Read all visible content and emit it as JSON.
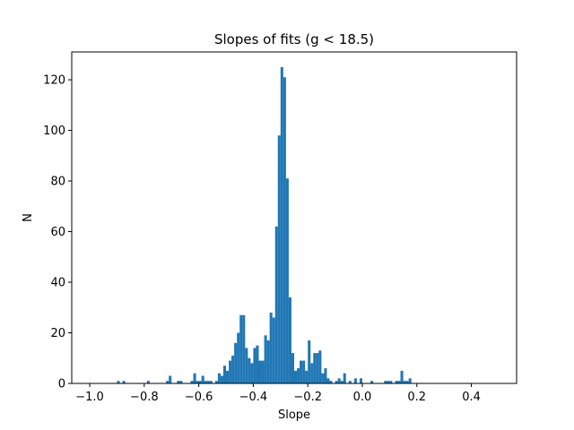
{
  "chart_data": {
    "type": "bar",
    "title": "Slopes of fits (g < 18.5)",
    "xlabel": "Slope",
    "ylabel": "N",
    "xlim": [
      -1.066,
      0.566
    ],
    "ylim": [
      0,
      131
    ],
    "xticks": [
      -1.0,
      -0.8,
      -0.6,
      -0.4,
      -0.2,
      0.0,
      0.2,
      0.4
    ],
    "xtick_labels": [
      "−1.0",
      "−0.8",
      "−0.6",
      "−0.4",
      "−0.2",
      "0.0",
      "0.2",
      "0.4"
    ],
    "yticks": [
      0,
      20,
      40,
      60,
      80,
      100,
      120
    ],
    "ytick_labels": [
      "0",
      "20",
      "40",
      "60",
      "80",
      "100",
      "120"
    ],
    "bin_width": 0.01,
    "bar_color": "#1f77b4",
    "bins": [
      {
        "x": -0.895,
        "n": 1
      },
      {
        "x": -0.875,
        "n": 1
      },
      {
        "x": -0.785,
        "n": 1
      },
      {
        "x": -0.715,
        "n": 1
      },
      {
        "x": -0.705,
        "n": 3
      },
      {
        "x": -0.675,
        "n": 1
      },
      {
        "x": -0.665,
        "n": 1
      },
      {
        "x": -0.625,
        "n": 1
      },
      {
        "x": -0.615,
        "n": 4
      },
      {
        "x": -0.605,
        "n": 1
      },
      {
        "x": -0.595,
        "n": 1
      },
      {
        "x": -0.585,
        "n": 3
      },
      {
        "x": -0.575,
        "n": 1
      },
      {
        "x": -0.565,
        "n": 1
      },
      {
        "x": -0.555,
        "n": 1
      },
      {
        "x": -0.535,
        "n": 1
      },
      {
        "x": -0.525,
        "n": 4
      },
      {
        "x": -0.515,
        "n": 3
      },
      {
        "x": -0.505,
        "n": 7
      },
      {
        "x": -0.495,
        "n": 5
      },
      {
        "x": -0.485,
        "n": 9
      },
      {
        "x": -0.475,
        "n": 11
      },
      {
        "x": -0.465,
        "n": 16
      },
      {
        "x": -0.455,
        "n": 20
      },
      {
        "x": -0.445,
        "n": 27
      },
      {
        "x": -0.435,
        "n": 27
      },
      {
        "x": -0.425,
        "n": 14
      },
      {
        "x": -0.415,
        "n": 10
      },
      {
        "x": -0.405,
        "n": 8
      },
      {
        "x": -0.395,
        "n": 14
      },
      {
        "x": -0.385,
        "n": 15
      },
      {
        "x": -0.375,
        "n": 9
      },
      {
        "x": -0.365,
        "n": 9
      },
      {
        "x": -0.355,
        "n": 19
      },
      {
        "x": -0.345,
        "n": 17
      },
      {
        "x": -0.335,
        "n": 28
      },
      {
        "x": -0.325,
        "n": 26
      },
      {
        "x": -0.315,
        "n": 62
      },
      {
        "x": -0.305,
        "n": 98
      },
      {
        "x": -0.295,
        "n": 125
      },
      {
        "x": -0.285,
        "n": 121
      },
      {
        "x": -0.275,
        "n": 81
      },
      {
        "x": -0.265,
        "n": 34
      },
      {
        "x": -0.255,
        "n": 12
      },
      {
        "x": -0.245,
        "n": 5
      },
      {
        "x": -0.235,
        "n": 6
      },
      {
        "x": -0.225,
        "n": 9
      },
      {
        "x": -0.215,
        "n": 9
      },
      {
        "x": -0.205,
        "n": 5
      },
      {
        "x": -0.195,
        "n": 17
      },
      {
        "x": -0.185,
        "n": 8
      },
      {
        "x": -0.175,
        "n": 12
      },
      {
        "x": -0.165,
        "n": 12
      },
      {
        "x": -0.155,
        "n": 13
      },
      {
        "x": -0.145,
        "n": 4
      },
      {
        "x": -0.135,
        "n": 6
      },
      {
        "x": -0.125,
        "n": 2
      },
      {
        "x": -0.115,
        "n": 1
      },
      {
        "x": -0.095,
        "n": 1
      },
      {
        "x": -0.085,
        "n": 2
      },
      {
        "x": -0.075,
        "n": 1
      },
      {
        "x": -0.065,
        "n": 4
      },
      {
        "x": -0.045,
        "n": 1
      },
      {
        "x": -0.025,
        "n": 2
      },
      {
        "x": -0.005,
        "n": 2
      },
      {
        "x": 0.035,
        "n": 1
      },
      {
        "x": 0.085,
        "n": 1
      },
      {
        "x": 0.095,
        "n": 1
      },
      {
        "x": 0.105,
        "n": 1
      },
      {
        "x": 0.125,
        "n": 1
      },
      {
        "x": 0.135,
        "n": 1
      },
      {
        "x": 0.145,
        "n": 5
      },
      {
        "x": 0.155,
        "n": 1
      },
      {
        "x": 0.165,
        "n": 1
      },
      {
        "x": 0.175,
        "n": 2
      }
    ]
  }
}
